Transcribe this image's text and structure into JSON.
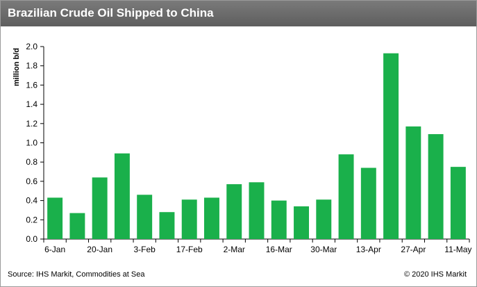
{
  "title": "Brazilian Crude Oil Shipped to China",
  "footer": {
    "source": "Source: IHS Markit, Commodities at Sea",
    "copyright": "© 2020 IHS Markit"
  },
  "colors": {
    "bar": "#1ab04b",
    "title_bg": "#6b6b6b"
  },
  "chart_data": {
    "type": "bar",
    "ylabel": "million b/d",
    "xlabel": "",
    "ylim": [
      0,
      2.0
    ],
    "yticks": [
      "0.0",
      "0.2",
      "0.4",
      "0.6",
      "0.8",
      "1.0",
      "1.2",
      "1.4",
      "1.6",
      "1.8",
      "2.0"
    ],
    "x_tick_labels": [
      "6-Jan",
      "20-Jan",
      "3-Feb",
      "17-Feb",
      "2-Mar",
      "16-Mar",
      "30-Mar",
      "13-Apr",
      "27-Apr",
      "11-May"
    ],
    "values": [
      0.43,
      0.27,
      0.64,
      0.89,
      0.46,
      0.28,
      0.41,
      0.43,
      0.57,
      0.59,
      0.4,
      0.34,
      0.41,
      0.88,
      0.74,
      1.93,
      1.17,
      1.09,
      0.75
    ],
    "grid": false,
    "legend": "none"
  }
}
